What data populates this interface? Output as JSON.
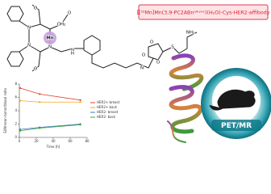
{
  "header": {
    "title": "[[⁵²Mn]Mn(3,9-PC2ABnᵃˡᵏʸⁿᵉ)(H₂O)-Cys-HER2-affibody"
  },
  "structure": {
    "atoms": [
      "O",
      "N",
      "Mn",
      "OH₂",
      "N",
      "N",
      "O",
      "O",
      "N",
      "H",
      "N",
      "O",
      "O",
      "S",
      "NH₂",
      "O"
    ]
  },
  "imaging": {
    "label": "PET/MR"
  },
  "chart_data": {
    "type": "line",
    "y_label": "SUVmean tumor/blood ratio",
    "x_label": "Time [h]",
    "xlim": [
      0,
      80
    ],
    "xticks": [
      0,
      20,
      40,
      60,
      80
    ],
    "ylim": [
      0,
      8
    ],
    "yticks": [
      0,
      2,
      4,
      6,
      8
    ],
    "x": [
      1,
      24,
      72
    ],
    "series": [
      {
        "name": "HER2+ breast",
        "color": "#e0402a",
        "values": [
          7.4,
          6.5,
          5.6
        ]
      },
      {
        "name": "HER2+ back",
        "color": "#f2a51a",
        "values": [
          5.5,
          5.3,
          5.3
        ]
      },
      {
        "name": "HER2- breast",
        "color": "#3f6fc0",
        "values": [
          1.2,
          1.5,
          2.0
        ]
      },
      {
        "name": "HER2- back",
        "color": "#3aa64a",
        "values": [
          1.0,
          1.4,
          1.9
        ]
      }
    ]
  }
}
